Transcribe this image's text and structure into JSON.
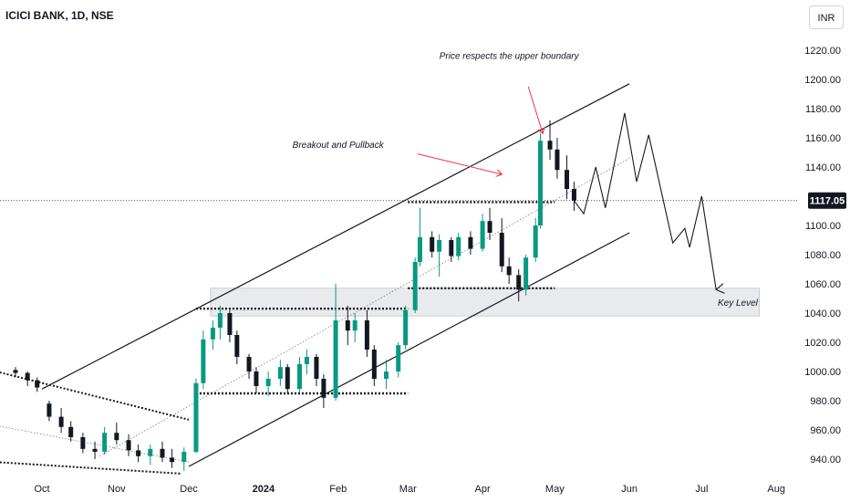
{
  "header": {
    "title": "ICICI BANK, 1D, NSE",
    "currency": "INR"
  },
  "chart_data": {
    "type": "candlestick",
    "ylim": [
      930,
      1232
    ],
    "y_ticks": [
      940,
      960,
      980,
      1000,
      1020,
      1040,
      1060,
      1080,
      1100,
      1120,
      1140,
      1160,
      1180,
      1200,
      1220
    ],
    "y_tick_labels": [
      "940.00",
      "960.00",
      "980.00",
      "1000.00",
      "1020.00",
      "1040.00",
      "1060.00",
      "1080.00",
      "1100.00",
      "1120.00",
      "1140.00",
      "1160.00",
      "1180.00",
      "1200.00",
      "1220.00"
    ],
    "x_ticks": [
      {
        "label": "Oct",
        "date": "2023-10-01",
        "bold": false
      },
      {
        "label": "Nov",
        "date": "2023-11-01",
        "bold": false
      },
      {
        "label": "Dec",
        "date": "2023-12-01",
        "bold": false
      },
      {
        "label": "2024",
        "date": "2024-01-01",
        "bold": true
      },
      {
        "label": "Feb",
        "date": "2024-02-01",
        "bold": false
      },
      {
        "label": "Mar",
        "date": "2024-03-01",
        "bold": false
      },
      {
        "label": "Apr",
        "date": "2024-04-01",
        "bold": false
      },
      {
        "label": "May",
        "date": "2024-05-01",
        "bold": false
      },
      {
        "label": "Jun",
        "date": "2024-06-01",
        "bold": false
      },
      {
        "label": "Jul",
        "date": "2024-07-01",
        "bold": false
      },
      {
        "label": "Aug",
        "date": "2024-08-01",
        "bold": false
      }
    ],
    "last_price": 1117.05,
    "last_price_label": "1117.05",
    "bull_color": "#089981",
    "bear_color": "#131722",
    "candles": [
      [
        "2023-09-20",
        1001,
        1003,
        996,
        999
      ],
      [
        "2023-09-25",
        999,
        1000,
        990,
        994
      ],
      [
        "2023-09-29",
        994,
        996,
        986,
        989
      ],
      [
        "2023-10-04",
        978,
        980,
        966,
        969
      ],
      [
        "2023-10-09",
        969,
        975,
        958,
        962
      ],
      [
        "2023-10-13",
        962,
        966,
        952,
        955
      ],
      [
        "2023-10-18",
        955,
        958,
        944,
        947
      ],
      [
        "2023-10-23",
        947,
        952,
        940,
        945
      ],
      [
        "2023-10-27",
        945,
        962,
        943,
        958
      ],
      [
        "2023-11-01",
        958,
        965,
        950,
        953
      ],
      [
        "2023-11-06",
        953,
        957,
        942,
        946
      ],
      [
        "2023-11-10",
        946,
        950,
        938,
        942
      ],
      [
        "2023-11-15",
        942,
        950,
        936,
        947
      ],
      [
        "2023-11-20",
        947,
        952,
        938,
        941
      ],
      [
        "2023-11-24",
        941,
        947,
        934,
        938
      ],
      [
        "2023-11-29",
        938,
        948,
        932,
        945
      ],
      [
        "2023-12-04",
        945,
        995,
        944,
        992
      ],
      [
        "2023-12-07",
        992,
        1028,
        988,
        1022
      ],
      [
        "2023-12-11",
        1022,
        1035,
        1015,
        1030
      ],
      [
        "2023-12-14",
        1030,
        1045,
        1022,
        1040
      ],
      [
        "2023-12-18",
        1040,
        1042,
        1020,
        1025
      ],
      [
        "2023-12-21",
        1025,
        1028,
        1005,
        1010
      ],
      [
        "2023-12-26",
        1010,
        1012,
        995,
        1000
      ],
      [
        "2023-12-29",
        1000,
        1003,
        985,
        990
      ],
      [
        "2024-01-03",
        990,
        1000,
        983,
        995
      ],
      [
        "2024-01-08",
        995,
        1008,
        990,
        1003
      ],
      [
        "2024-01-11",
        1003,
        1005,
        985,
        988
      ],
      [
        "2024-01-16",
        988,
        1010,
        986,
        1005
      ],
      [
        "2024-01-19",
        1005,
        1015,
        998,
        1010
      ],
      [
        "2024-01-23",
        1010,
        1012,
        990,
        995
      ],
      [
        "2024-01-26",
        995,
        998,
        975,
        982
      ],
      [
        "2024-01-31",
        982,
        1060,
        980,
        1035
      ],
      [
        "2024-02-05",
        1035,
        1045,
        1018,
        1028
      ],
      [
        "2024-02-08",
        1028,
        1040,
        1020,
        1035
      ],
      [
        "2024-02-13",
        1035,
        1042,
        1010,
        1015
      ],
      [
        "2024-02-16",
        1015,
        1018,
        990,
        995
      ],
      [
        "2024-02-21",
        995,
        1008,
        988,
        1000
      ],
      [
        "2024-02-26",
        1000,
        1020,
        996,
        1018
      ],
      [
        "2024-02-29",
        1018,
        1045,
        1015,
        1042
      ],
      [
        "2024-03-04",
        1042,
        1078,
        1040,
        1075
      ],
      [
        "2024-03-06",
        1075,
        1112,
        1072,
        1092
      ],
      [
        "2024-03-11",
        1092,
        1096,
        1078,
        1082
      ],
      [
        "2024-03-14",
        1082,
        1094,
        1065,
        1090
      ],
      [
        "2024-03-19",
        1090,
        1092,
        1075,
        1079
      ],
      [
        "2024-03-22",
        1079,
        1095,
        1076,
        1092
      ],
      [
        "2024-03-27",
        1092,
        1096,
        1080,
        1084
      ],
      [
        "2024-04-01",
        1084,
        1108,
        1082,
        1103
      ],
      [
        "2024-04-04",
        1103,
        1112,
        1090,
        1095
      ],
      [
        "2024-04-09",
        1095,
        1105,
        1068,
        1072
      ],
      [
        "2024-04-12",
        1072,
        1078,
        1060,
        1066
      ],
      [
        "2024-04-16",
        1066,
        1070,
        1048,
        1056
      ],
      [
        "2024-04-19",
        1056,
        1080,
        1052,
        1078
      ],
      [
        "2024-04-23",
        1078,
        1105,
        1075,
        1100
      ],
      [
        "2024-04-25",
        1100,
        1163,
        1098,
        1158
      ],
      [
        "2024-04-29",
        1158,
        1172,
        1145,
        1152
      ],
      [
        "2024-05-02",
        1152,
        1160,
        1132,
        1138
      ],
      [
        "2024-05-06",
        1138,
        1148,
        1118,
        1125
      ],
      [
        "2024-05-09",
        1125,
        1130,
        1110,
        1117.05
      ]
    ],
    "projection": [
      [
        "2024-05-09",
        1117
      ],
      [
        "2024-05-13",
        1108
      ],
      [
        "2024-05-18",
        1140
      ],
      [
        "2024-05-22",
        1112
      ],
      [
        "2024-05-30",
        1177
      ],
      [
        "2024-06-04",
        1130
      ],
      [
        "2024-06-09",
        1162
      ],
      [
        "2024-06-19",
        1088
      ],
      [
        "2024-06-24",
        1098
      ],
      [
        "2024-06-26",
        1085
      ],
      [
        "2024-07-01",
        1120
      ],
      [
        "2024-07-07",
        1056
      ]
    ],
    "channel_upper": [
      [
        "2023-10-01",
        988
      ],
      [
        "2024-06-01",
        1197
      ]
    ],
    "channel_lower": [
      [
        "2023-12-01",
        935
      ],
      [
        "2024-06-01",
        1095
      ]
    ],
    "channel_mid": [
      [
        "2023-10-25",
        942
      ],
      [
        "2024-06-01",
        1146
      ]
    ],
    "old_channel_top": [
      [
        "2023-09-12",
        1000
      ],
      [
        "2023-12-01",
        967
      ]
    ],
    "old_channel_mid": [
      [
        "2023-09-12",
        963
      ],
      [
        "2023-12-01",
        938
      ]
    ],
    "old_channel_bottom": [
      [
        "2023-09-12",
        938
      ],
      [
        "2023-11-28",
        930
      ]
    ],
    "support_lines": [
      {
        "from": "2023-12-04",
        "to": "2024-03-01",
        "value": 1043
      },
      {
        "from": "2023-12-04",
        "to": "2024-03-01",
        "value": 985
      },
      {
        "from": "2024-03-01",
        "to": "2024-05-01",
        "value": 1116
      },
      {
        "from": "2024-03-01",
        "to": "2024-05-01",
        "value": 1057
      }
    ],
    "key_level_zone": {
      "from": "2023-12-10",
      "to": "2024-07-25",
      "top": 1057,
      "bottom": 1038,
      "color": "#e8eaee"
    },
    "annotations": [
      {
        "text": "Price respects the upper boundary",
        "date": "2024-04-12",
        "value": 1214
      },
      {
        "text": "Breakout and Pullback",
        "date": "2024-02-01",
        "value": 1153
      },
      {
        "text": "Key Level",
        "date": "2024-07-16",
        "value": 1045
      }
    ],
    "arrows": [
      {
        "from": [
          "2024-04-20",
          1195
        ],
        "to": [
          "2024-04-26",
          1163
        ],
        "color": "#f23645"
      },
      {
        "from": [
          "2024-03-05",
          1149
        ],
        "to": [
          "2024-04-09",
          1135
        ],
        "color": "#f23645"
      }
    ],
    "grid": false
  }
}
